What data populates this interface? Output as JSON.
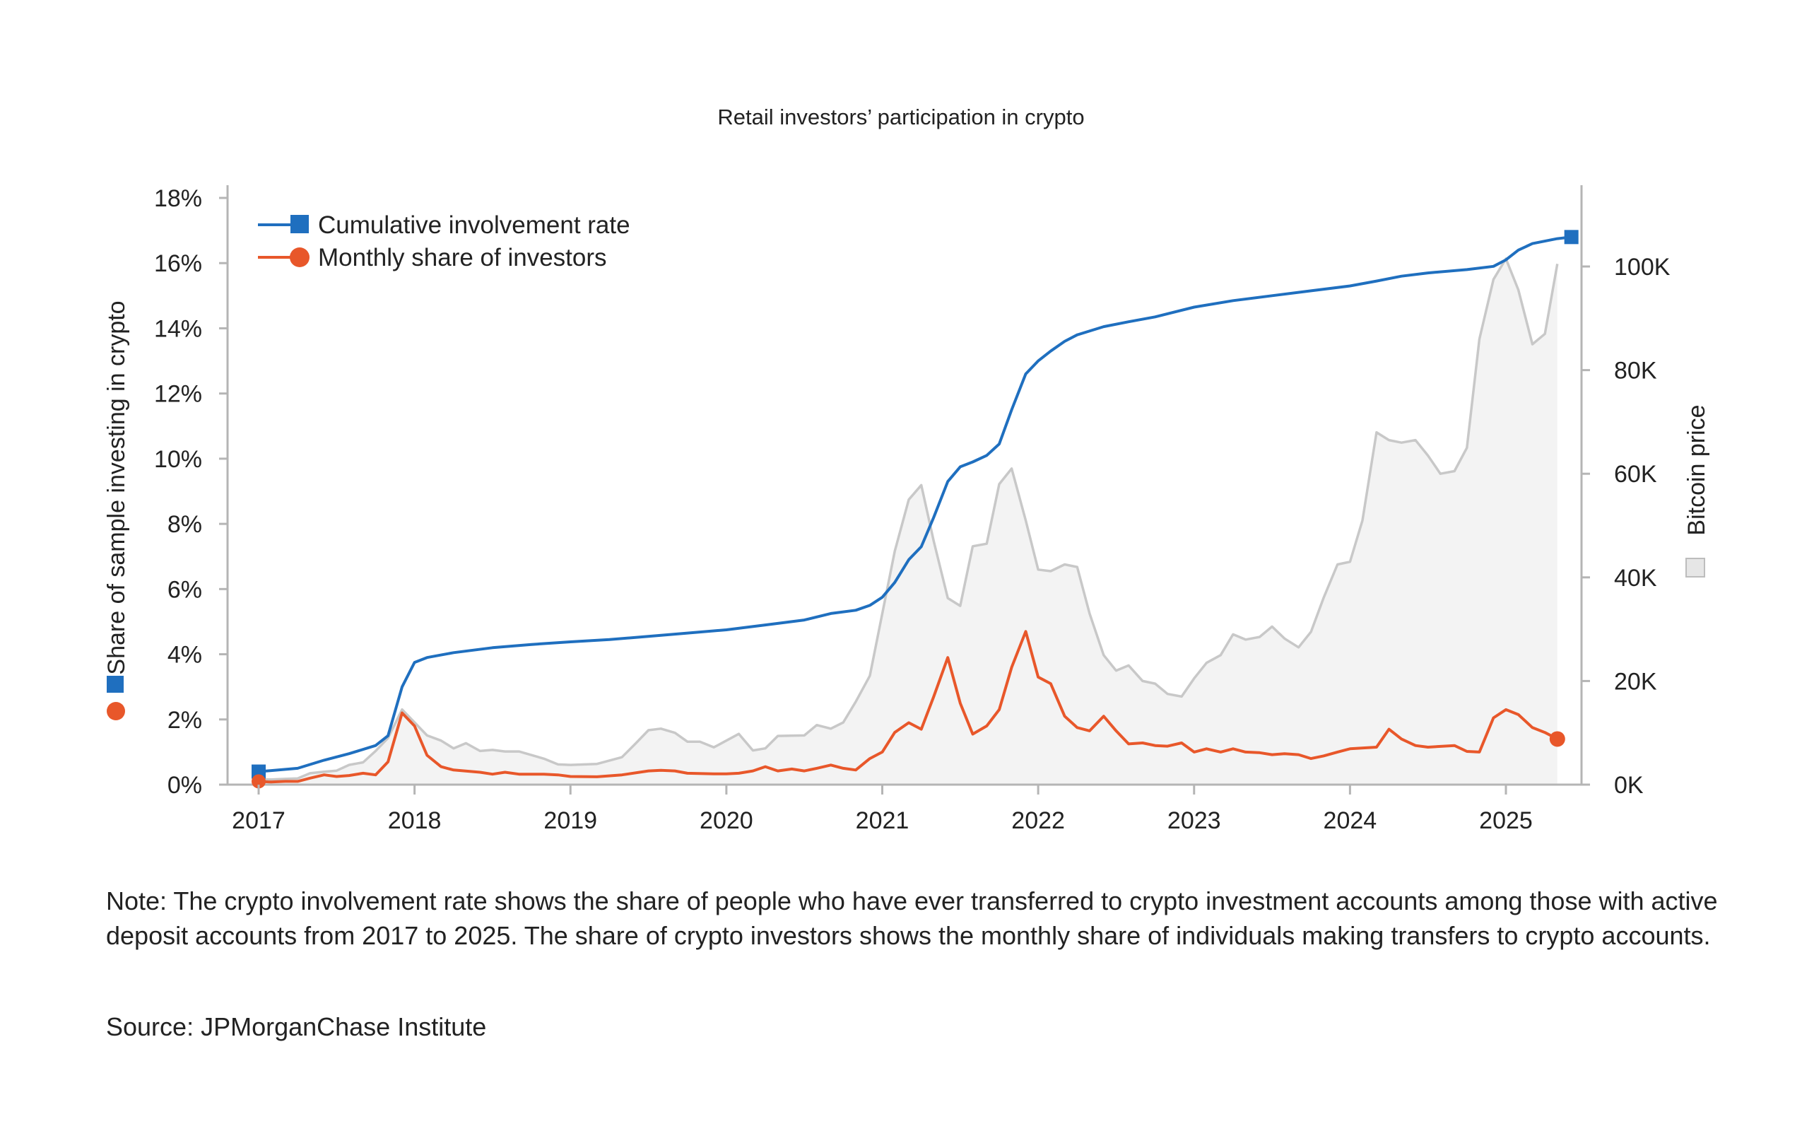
{
  "chart_data": {
    "type": "line",
    "title": "Retail investors’ participation in crypto",
    "ylabel_left": "Share of sample investing in crypto",
    "ylabel_right": "Bitcoin price",
    "x_ticks": [
      "2017",
      "2018",
      "2019",
      "2020",
      "2021",
      "2022",
      "2023",
      "2024",
      "2025"
    ],
    "x_range": [
      2017.0,
      2025.5
    ],
    "y_left_ticks": [
      "0%",
      "2%",
      "4%",
      "6%",
      "8%",
      "10%",
      "12%",
      "14%",
      "16%",
      "18%"
    ],
    "y_left_range": [
      0,
      18
    ],
    "y_right_ticks": [
      "0K",
      "20K",
      "40K",
      "60K",
      "80K",
      "100K"
    ],
    "y_right_range": [
      0,
      115000
    ],
    "series": [
      {
        "name": "Cumulative involvement rate",
        "axis": "left",
        "color": "#1f6fbf",
        "marker": "square",
        "points": [
          [
            2017.0,
            0.4
          ],
          [
            2017.25,
            0.5
          ],
          [
            2017.42,
            0.75
          ],
          [
            2017.58,
            0.95
          ],
          [
            2017.75,
            1.2
          ],
          [
            2017.83,
            1.5
          ],
          [
            2017.92,
            3.0
          ],
          [
            2018.0,
            3.75
          ],
          [
            2018.08,
            3.9
          ],
          [
            2018.25,
            4.05
          ],
          [
            2018.5,
            4.2
          ],
          [
            2018.75,
            4.3
          ],
          [
            2019.0,
            4.38
          ],
          [
            2019.25,
            4.45
          ],
          [
            2019.5,
            4.55
          ],
          [
            2019.75,
            4.65
          ],
          [
            2020.0,
            4.75
          ],
          [
            2020.25,
            4.9
          ],
          [
            2020.5,
            5.05
          ],
          [
            2020.67,
            5.25
          ],
          [
            2020.83,
            5.35
          ],
          [
            2020.92,
            5.5
          ],
          [
            2021.0,
            5.75
          ],
          [
            2021.08,
            6.2
          ],
          [
            2021.17,
            6.9
          ],
          [
            2021.25,
            7.3
          ],
          [
            2021.33,
            8.2
          ],
          [
            2021.42,
            9.3
          ],
          [
            2021.5,
            9.75
          ],
          [
            2021.58,
            9.9
          ],
          [
            2021.67,
            10.1
          ],
          [
            2021.75,
            10.45
          ],
          [
            2021.83,
            11.5
          ],
          [
            2021.92,
            12.6
          ],
          [
            2022.0,
            13.0
          ],
          [
            2022.08,
            13.3
          ],
          [
            2022.17,
            13.6
          ],
          [
            2022.25,
            13.8
          ],
          [
            2022.42,
            14.05
          ],
          [
            2022.58,
            14.2
          ],
          [
            2022.75,
            14.35
          ],
          [
            2023.0,
            14.65
          ],
          [
            2023.25,
            14.85
          ],
          [
            2023.5,
            15.0
          ],
          [
            2023.75,
            15.15
          ],
          [
            2024.0,
            15.3
          ],
          [
            2024.17,
            15.45
          ],
          [
            2024.33,
            15.6
          ],
          [
            2024.5,
            15.7
          ],
          [
            2024.75,
            15.8
          ],
          [
            2024.92,
            15.9
          ],
          [
            2025.0,
            16.1
          ],
          [
            2025.08,
            16.4
          ],
          [
            2025.17,
            16.6
          ],
          [
            2025.33,
            16.75
          ],
          [
            2025.42,
            16.8
          ]
        ]
      },
      {
        "name": "Monthly share of investors",
        "axis": "left",
        "color": "#e8572a",
        "marker": "circle",
        "points": [
          [
            2017.0,
            0.1
          ],
          [
            2017.08,
            0.08
          ],
          [
            2017.17,
            0.1
          ],
          [
            2017.25,
            0.1
          ],
          [
            2017.33,
            0.2
          ],
          [
            2017.42,
            0.3
          ],
          [
            2017.5,
            0.25
          ],
          [
            2017.58,
            0.28
          ],
          [
            2017.67,
            0.35
          ],
          [
            2017.75,
            0.3
          ],
          [
            2017.83,
            0.7
          ],
          [
            2017.92,
            2.2
          ],
          [
            2018.0,
            1.8
          ],
          [
            2018.08,
            0.9
          ],
          [
            2018.17,
            0.55
          ],
          [
            2018.25,
            0.45
          ],
          [
            2018.42,
            0.38
          ],
          [
            2018.5,
            0.32
          ],
          [
            2018.58,
            0.38
          ],
          [
            2018.67,
            0.32
          ],
          [
            2018.83,
            0.32
          ],
          [
            2018.92,
            0.3
          ],
          [
            2019.0,
            0.25
          ],
          [
            2019.17,
            0.24
          ],
          [
            2019.33,
            0.3
          ],
          [
            2019.5,
            0.42
          ],
          [
            2019.58,
            0.44
          ],
          [
            2019.67,
            0.42
          ],
          [
            2019.75,
            0.35
          ],
          [
            2019.92,
            0.33
          ],
          [
            2020.0,
            0.33
          ],
          [
            2020.08,
            0.35
          ],
          [
            2020.17,
            0.42
          ],
          [
            2020.25,
            0.55
          ],
          [
            2020.33,
            0.42
          ],
          [
            2020.42,
            0.48
          ],
          [
            2020.5,
            0.42
          ],
          [
            2020.58,
            0.5
          ],
          [
            2020.67,
            0.6
          ],
          [
            2020.75,
            0.5
          ],
          [
            2020.83,
            0.45
          ],
          [
            2020.92,
            0.8
          ],
          [
            2021.0,
            1.0
          ],
          [
            2021.08,
            1.6
          ],
          [
            2021.17,
            1.9
          ],
          [
            2021.25,
            1.7
          ],
          [
            2021.33,
            2.7
          ],
          [
            2021.42,
            3.9
          ],
          [
            2021.5,
            2.5
          ],
          [
            2021.58,
            1.55
          ],
          [
            2021.67,
            1.8
          ],
          [
            2021.75,
            2.3
          ],
          [
            2021.83,
            3.6
          ],
          [
            2021.92,
            4.7
          ],
          [
            2022.0,
            3.3
          ],
          [
            2022.08,
            3.1
          ],
          [
            2022.17,
            2.1
          ],
          [
            2022.25,
            1.75
          ],
          [
            2022.33,
            1.65
          ],
          [
            2022.42,
            2.1
          ],
          [
            2022.5,
            1.65
          ],
          [
            2022.58,
            1.25
          ],
          [
            2022.67,
            1.28
          ],
          [
            2022.75,
            1.2
          ],
          [
            2022.83,
            1.18
          ],
          [
            2022.92,
            1.28
          ],
          [
            2023.0,
            1.0
          ],
          [
            2023.08,
            1.1
          ],
          [
            2023.17,
            1.0
          ],
          [
            2023.25,
            1.1
          ],
          [
            2023.33,
            1.0
          ],
          [
            2023.42,
            0.98
          ],
          [
            2023.5,
            0.92
          ],
          [
            2023.58,
            0.95
          ],
          [
            2023.67,
            0.92
          ],
          [
            2023.75,
            0.8
          ],
          [
            2023.83,
            0.88
          ],
          [
            2023.92,
            1.0
          ],
          [
            2024.0,
            1.1
          ],
          [
            2024.17,
            1.15
          ],
          [
            2024.25,
            1.7
          ],
          [
            2024.33,
            1.4
          ],
          [
            2024.42,
            1.2
          ],
          [
            2024.5,
            1.15
          ],
          [
            2024.67,
            1.2
          ],
          [
            2024.75,
            1.02
          ],
          [
            2024.83,
            1.0
          ],
          [
            2024.92,
            2.05
          ],
          [
            2025.0,
            2.3
          ],
          [
            2025.08,
            2.15
          ],
          [
            2025.17,
            1.75
          ],
          [
            2025.25,
            1.6
          ],
          [
            2025.33,
            1.4
          ]
        ]
      },
      {
        "name": "Bitcoin price",
        "axis": "right",
        "color": "#c8c8c8",
        "fill": "#f3f3f3",
        "marker": "square",
        "points": [
          [
            2017.0,
            1000
          ],
          [
            2017.08,
            1000
          ],
          [
            2017.17,
            1100
          ],
          [
            2017.25,
            1200
          ],
          [
            2017.33,
            2200
          ],
          [
            2017.42,
            2500
          ],
          [
            2017.5,
            2700
          ],
          [
            2017.58,
            3800
          ],
          [
            2017.67,
            4300
          ],
          [
            2017.75,
            6500
          ],
          [
            2017.83,
            9000
          ],
          [
            2017.92,
            14500
          ],
          [
            2018.0,
            12000
          ],
          [
            2018.08,
            9500
          ],
          [
            2018.17,
            8500
          ],
          [
            2018.25,
            7000
          ],
          [
            2018.33,
            8000
          ],
          [
            2018.42,
            6500
          ],
          [
            2018.5,
            6700
          ],
          [
            2018.58,
            6400
          ],
          [
            2018.67,
            6400
          ],
          [
            2018.83,
            5000
          ],
          [
            2018.92,
            3900
          ],
          [
            2019.0,
            3800
          ],
          [
            2019.17,
            4000
          ],
          [
            2019.33,
            5300
          ],
          [
            2019.42,
            8000
          ],
          [
            2019.5,
            10500
          ],
          [
            2019.58,
            10800
          ],
          [
            2019.67,
            10000
          ],
          [
            2019.75,
            8300
          ],
          [
            2019.83,
            8300
          ],
          [
            2019.92,
            7200
          ],
          [
            2020.0,
            8500
          ],
          [
            2020.08,
            9800
          ],
          [
            2020.17,
            6600
          ],
          [
            2020.25,
            7000
          ],
          [
            2020.33,
            9400
          ],
          [
            2020.5,
            9500
          ],
          [
            2020.58,
            11500
          ],
          [
            2020.67,
            10800
          ],
          [
            2020.75,
            12000
          ],
          [
            2020.83,
            16000
          ],
          [
            2020.92,
            21000
          ],
          [
            2021.0,
            33000
          ],
          [
            2021.08,
            45000
          ],
          [
            2021.17,
            55000
          ],
          [
            2021.25,
            57800
          ],
          [
            2021.33,
            47000
          ],
          [
            2021.42,
            36000
          ],
          [
            2021.5,
            34500
          ],
          [
            2021.58,
            46000
          ],
          [
            2021.67,
            46500
          ],
          [
            2021.75,
            58000
          ],
          [
            2021.83,
            61000
          ],
          [
            2021.92,
            51000
          ],
          [
            2022.0,
            41500
          ],
          [
            2022.08,
            41200
          ],
          [
            2022.17,
            42500
          ],
          [
            2022.25,
            42000
          ],
          [
            2022.33,
            33000
          ],
          [
            2022.42,
            25000
          ],
          [
            2022.5,
            22000
          ],
          [
            2022.58,
            23000
          ],
          [
            2022.67,
            20000
          ],
          [
            2022.75,
            19500
          ],
          [
            2022.83,
            17500
          ],
          [
            2022.92,
            17000
          ],
          [
            2023.0,
            20500
          ],
          [
            2023.08,
            23500
          ],
          [
            2023.17,
            25000
          ],
          [
            2023.25,
            29000
          ],
          [
            2023.33,
            28000
          ],
          [
            2023.42,
            28500
          ],
          [
            2023.5,
            30500
          ],
          [
            2023.58,
            28200
          ],
          [
            2023.67,
            26500
          ],
          [
            2023.75,
            29500
          ],
          [
            2023.83,
            36000
          ],
          [
            2023.92,
            42500
          ],
          [
            2024.0,
            43000
          ],
          [
            2024.08,
            51000
          ],
          [
            2024.17,
            68000
          ],
          [
            2024.25,
            66500
          ],
          [
            2024.33,
            66000
          ],
          [
            2024.42,
            66500
          ],
          [
            2024.5,
            63500
          ],
          [
            2024.58,
            60000
          ],
          [
            2024.67,
            60500
          ],
          [
            2024.75,
            65000
          ],
          [
            2024.83,
            86000
          ],
          [
            2024.92,
            97500
          ],
          [
            2025.0,
            101500
          ],
          [
            2025.08,
            95500
          ],
          [
            2025.17,
            85000
          ],
          [
            2025.25,
            87000
          ],
          [
            2025.33,
            100500
          ]
        ]
      }
    ]
  },
  "note": "Note: The crypto involvement rate shows the share of people who have ever transferred to crypto investment accounts among those with active deposit accounts from 2017 to 2025. The share of crypto investors shows the monthly share of individuals making transfers to crypto accounts.",
  "source": "Source: JPMorganChase Institute"
}
